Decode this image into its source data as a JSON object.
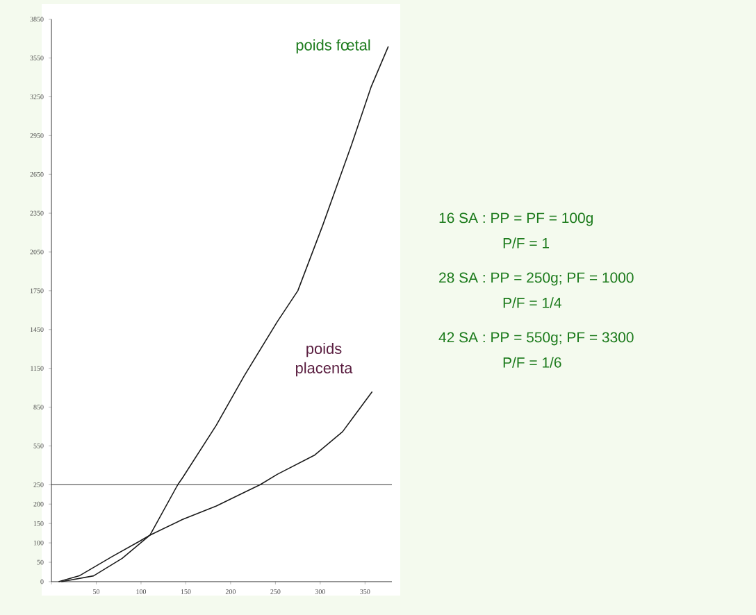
{
  "chart_data": [
    {
      "type": "line",
      "tick_labels": "y",
      "series": [
        {
          "name": "poids fœtal",
          "color": "#1a1a1a",
          "x": [
            141,
            146,
            184,
            215,
            252,
            275,
            303,
            335,
            357,
            376
          ],
          "values": [
            250,
            300,
            710,
            1090,
            1510,
            1750,
            2260,
            2880,
            3330,
            3640
          ]
        },
        {
          "name": "poids placenta",
          "color": "#1a1a1a",
          "x": [
            233,
            252,
            294,
            325,
            358
          ],
          "values": [
            250,
            330,
            480,
            660,
            970
          ]
        }
      ],
      "xlim": [
        0,
        380
      ],
      "ylim": [
        250,
        3850
      ],
      "yticks": [
        250,
        550,
        850,
        1150,
        1450,
        1750,
        2050,
        2350,
        2650,
        2950,
        3250,
        3550,
        3850
      ],
      "annotations": [
        "16 SA : PP = PF = 100g",
        "P/F = 1",
        "28 SA : PP = 250g; PF = 1000",
        "P/F = 1/4",
        "42 SA : PP = 550g; PF = 3300",
        "P/F = 1/6"
      ]
    },
    {
      "type": "line",
      "series": [
        {
          "color": "#1a1a1a",
          "x": [
            11,
            47,
            79,
            110,
            141
          ],
          "values": [
            0,
            15,
            60,
            120,
            250
          ]
        },
        {
          "color": "#1a1a1a",
          "x": [
            8,
            31,
            68,
            99,
            110,
            146,
            184,
            215,
            233
          ],
          "values": [
            0,
            15,
            65,
            105,
            120,
            160,
            195,
            230,
            250
          ]
        }
      ],
      "xlim": [
        0,
        380
      ],
      "xticks": [
        {
          "value": 0,
          "label": null
        },
        50,
        100,
        150,
        200,
        250,
        300,
        350
      ],
      "ylim": [
        0,
        250
      ],
      "yticks": [
        0,
        50,
        100,
        150,
        200
      ]
    }
  ]
}
